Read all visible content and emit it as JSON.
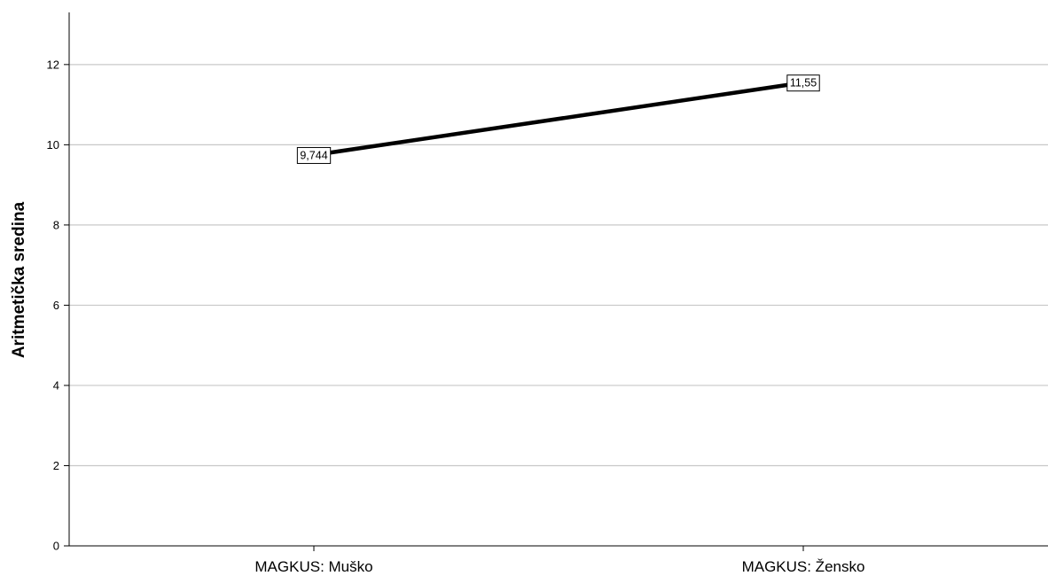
{
  "chart_data": {
    "type": "line",
    "title": "",
    "xlabel": "",
    "ylabel": "Aritmetička sredina",
    "categories": [
      "MAGKUS: Muško",
      "MAGKUS: Žensko"
    ],
    "series": [
      {
        "values": [
          9.744,
          11.55
        ]
      }
    ],
    "data_labels": [
      "9,744",
      "11,55"
    ],
    "ylim": [
      0,
      13.3
    ],
    "yticks": [
      0,
      2,
      4,
      6,
      8,
      10,
      12
    ],
    "ytick_labels": [
      "0",
      "2",
      "4",
      "6",
      "8",
      "10",
      "12"
    ],
    "grid": true,
    "colors": {
      "line": "#000000",
      "grid": "#c8c8c8",
      "axis": "#000000",
      "background": "#ffffff"
    }
  }
}
